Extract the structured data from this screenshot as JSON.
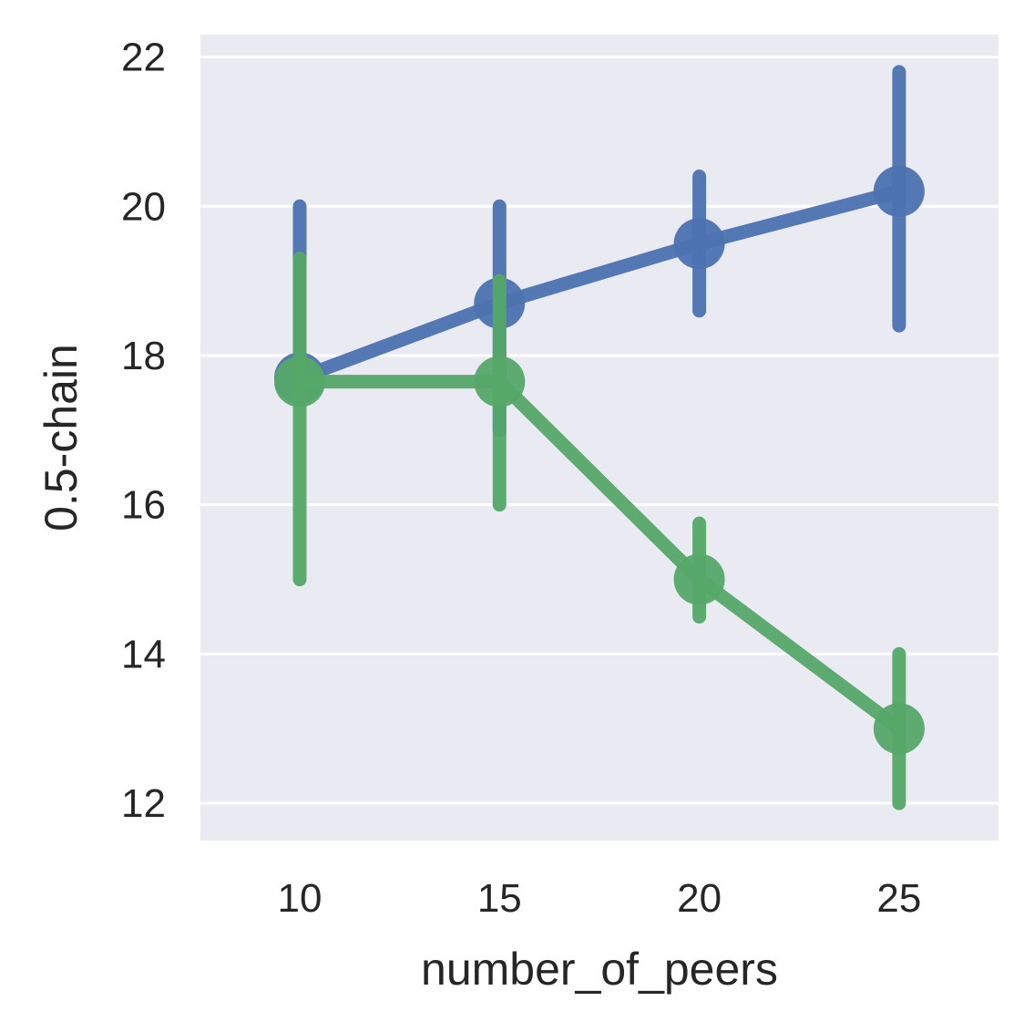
{
  "chart_data": {
    "type": "line",
    "title": "",
    "xlabel": "number_of_peers",
    "ylabel": "0.5-chain",
    "categories": [
      "10",
      "15",
      "20",
      "25"
    ],
    "ylim": [
      11.5,
      22.3
    ],
    "yticks": [
      "12",
      "14",
      "16",
      "18",
      "20",
      "22"
    ],
    "grid": true,
    "legend": "none",
    "series": [
      {
        "color": "#4c72b0",
        "values": [
          17.7,
          18.7,
          19.5,
          20.2
        ],
        "ci_low": [
          17.4,
          17.0,
          18.6,
          18.4
        ],
        "ci_high": [
          20.0,
          20.0,
          20.4,
          21.8
        ]
      },
      {
        "color": "#55a868",
        "values": [
          17.65,
          17.65,
          15.0,
          13.0
        ],
        "ci_low": [
          15.0,
          16.0,
          14.5,
          12.0
        ],
        "ci_high": [
          19.3,
          19.0,
          15.75,
          14.0
        ]
      }
    ],
    "background_color": "#eaeaf2",
    "grid_color": "#ffffff"
  }
}
